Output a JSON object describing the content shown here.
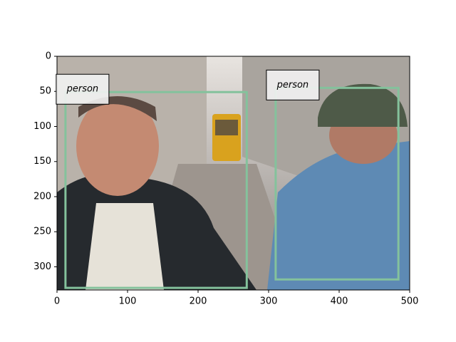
{
  "chart_data": {
    "type": "image-detections",
    "xlim": [
      0,
      500
    ],
    "ylim": [
      333,
      0
    ],
    "xticks": [
      0,
      100,
      200,
      300,
      400,
      500
    ],
    "yticks": [
      0,
      50,
      100,
      150,
      200,
      250,
      300
    ],
    "box_color": "#84c29c",
    "boxes": [
      {
        "label": "person",
        "x1": 12,
        "y1": 51,
        "x2": 269,
        "y2": 330
      },
      {
        "label": "person",
        "x1": 310,
        "y1": 45,
        "x2": 484,
        "y2": 318
      }
    ]
  }
}
